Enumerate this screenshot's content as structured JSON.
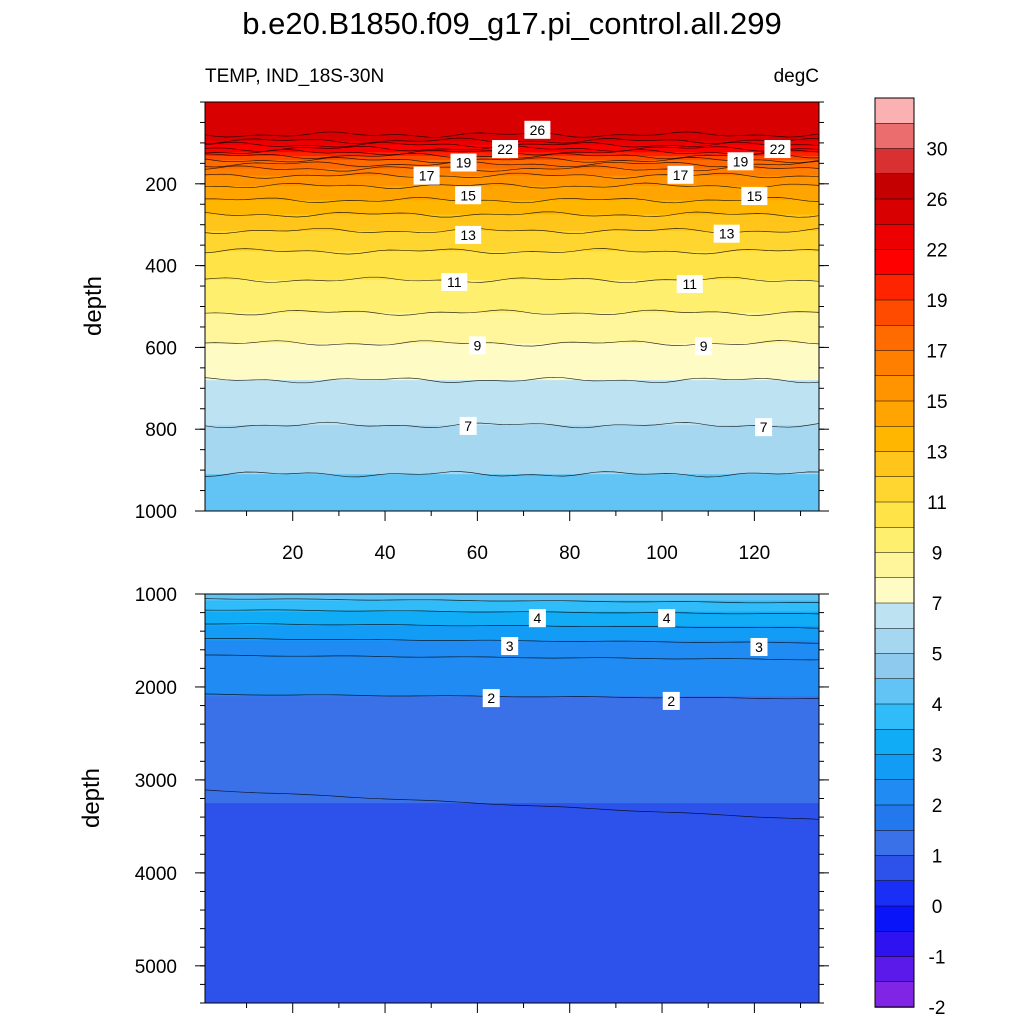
{
  "chart_data": {
    "type": "contour",
    "title": "b.e20.B1850.f09_g17.pi_control.all.299",
    "subtitle_left": "TEMP, IND_18S-30N",
    "subtitle_right": "degC",
    "panels": [
      {
        "name": "upper",
        "xlim": [
          1,
          134
        ],
        "ylim": [
          0,
          1000
        ],
        "ylabel": "depth",
        "xticks": [
          20,
          40,
          60,
          80,
          100,
          120
        ],
        "yticks": [
          200,
          400,
          600,
          800,
          1000
        ],
        "show_x_labels": true,
        "contour_lines": [
          {
            "value": 26,
            "depth": 80
          },
          {
            "value": 25,
            "depth": 95
          },
          {
            "value": 24,
            "depth": 105
          },
          {
            "value": 23,
            "depth": 114
          },
          {
            "value": 22,
            "depth": 123
          },
          {
            "value": 21,
            "depth": 132
          },
          {
            "value": 20,
            "depth": 142
          },
          {
            "value": 19,
            "depth": 152
          },
          {
            "value": 18,
            "depth": 163
          },
          {
            "value": 17,
            "depth": 180
          },
          {
            "value": 16,
            "depth": 205
          },
          {
            "value": 15,
            "depth": 240
          },
          {
            "value": 14,
            "depth": 275
          },
          {
            "value": 13,
            "depth": 315
          },
          {
            "value": 12,
            "depth": 365
          },
          {
            "value": 11,
            "depth": 435
          },
          {
            "value": 10,
            "depth": 515
          },
          {
            "value": 9,
            "depth": 590
          },
          {
            "value": 8,
            "depth": 680
          },
          {
            "value": 7,
            "depth": 790
          },
          {
            "value": 6,
            "depth": 910
          }
        ],
        "contour_labels": [
          {
            "text": "26",
            "x": 73,
            "depth": 68
          },
          {
            "text": "22",
            "x": 66,
            "depth": 115
          },
          {
            "text": "22",
            "x": 125,
            "depth": 115
          },
          {
            "text": "19",
            "x": 57,
            "depth": 148
          },
          {
            "text": "19",
            "x": 117,
            "depth": 145
          },
          {
            "text": "17",
            "x": 49,
            "depth": 180
          },
          {
            "text": "17",
            "x": 104,
            "depth": 178
          },
          {
            "text": "15",
            "x": 58,
            "depth": 228
          },
          {
            "text": "15",
            "x": 120,
            "depth": 230
          },
          {
            "text": "13",
            "x": 58,
            "depth": 325
          },
          {
            "text": "13",
            "x": 114,
            "depth": 322
          },
          {
            "text": "11",
            "x": 55,
            "depth": 440
          },
          {
            "text": "11",
            "x": 106,
            "depth": 445
          },
          {
            "text": "9",
            "x": 60,
            "depth": 595
          },
          {
            "text": "9",
            "x": 109,
            "depth": 597
          },
          {
            "text": "7",
            "x": 58,
            "depth": 792
          },
          {
            "text": "7",
            "x": 122,
            "depth": 795
          }
        ]
      },
      {
        "name": "lower",
        "xlim": [
          1,
          134
        ],
        "ylim": [
          1000,
          5400
        ],
        "ylabel": "depth",
        "yticks": [
          1000,
          2000,
          3000,
          4000,
          5000
        ],
        "show_x_labels": false,
        "contour_lines": [
          {
            "value": 5,
            "depth": 1070
          },
          {
            "value": 4.5,
            "depth": 1190
          },
          {
            "value": 4,
            "depth": 1340
          },
          {
            "value": 3.5,
            "depth": 1500
          },
          {
            "value": 3,
            "depth": 1680
          },
          {
            "value": 2,
            "depth": 2100
          },
          {
            "value": 1.5,
            "depth": 3250
          }
        ],
        "contour_labels": [
          {
            "text": "4",
            "x": 73,
            "depth": 1260
          },
          {
            "text": "4",
            "x": 101,
            "depth": 1260
          },
          {
            "text": "3",
            "x": 67,
            "depth": 1560
          },
          {
            "text": "3",
            "x": 121,
            "depth": 1570
          },
          {
            "text": "2",
            "x": 63,
            "depth": 2120
          },
          {
            "text": "2",
            "x": 102,
            "depth": 2150
          }
        ]
      }
    ],
    "colorbar": {
      "labels": [
        "30",
        "26",
        "22",
        "19",
        "17",
        "15",
        "13",
        "11",
        "9",
        "7",
        "5",
        "4",
        "3",
        "2",
        "1",
        "0",
        "-1",
        "-2"
      ],
      "colors": [
        "#fbb1b1",
        "#ec6d6d",
        "#d93131",
        "#c40000",
        "#d80000",
        "#ec0000",
        "#ff0000",
        "#ff2400",
        "#ff4b00",
        "#ff6b00",
        "#ff7f00",
        "#ff9300",
        "#ffa400",
        "#ffb600",
        "#ffc51a",
        "#ffd530",
        "#ffe347",
        "#ffef6e",
        "#fff59a",
        "#fffbc5",
        "#bde3f3",
        "#a6d7f1",
        "#8ec9ee",
        "#62c4f5",
        "#2fbcf9",
        "#10acf6",
        "#139cf6",
        "#1f8bf3",
        "#2378ee",
        "#3b71e8",
        "#2d52ec",
        "#1a2ff5",
        "#0a14f8",
        "#2f12f0",
        "#5b1aea",
        "#8024e6"
      ]
    }
  }
}
